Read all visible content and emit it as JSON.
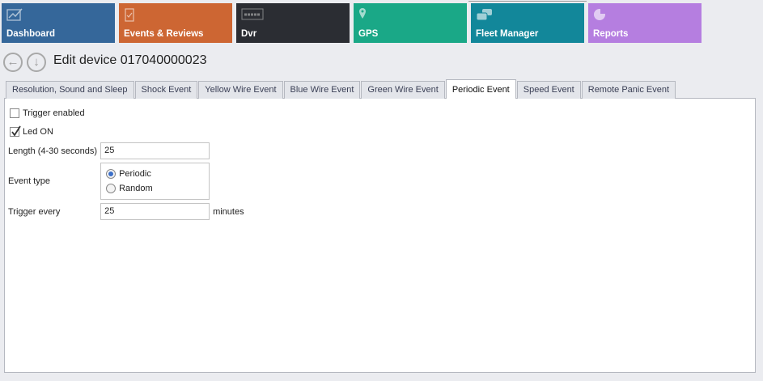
{
  "tiles": [
    {
      "label": "Dashboard",
      "icon": "chart-line-icon",
      "color": "#35679a"
    },
    {
      "label": "Events & Reviews",
      "icon": "clipboard-check-icon",
      "color": "#cd6633"
    },
    {
      "label": "Dvr",
      "icon": "merge-logo-icon",
      "color": "#2b2d33"
    },
    {
      "label": "GPS",
      "icon": "map-pin-icon",
      "color": "#1aa887"
    },
    {
      "label": "Fleet Manager",
      "icon": "cars-icon",
      "color": "#12879a"
    },
    {
      "label": "Reports",
      "icon": "pie-chart-icon",
      "color": "#b57ee0"
    }
  ],
  "header": {
    "title": "Edit device 017040000023"
  },
  "tabs": [
    "Resolution, Sound and Sleep",
    "Shock Event",
    "Yellow Wire Event",
    "Blue Wire Event",
    "Green Wire Event",
    "Periodic Event",
    "Speed Event",
    "Remote Panic Event"
  ],
  "active_tab": "Periodic Event",
  "form": {
    "trigger_enabled": {
      "label": "Trigger enabled",
      "checked": false
    },
    "led_on": {
      "label": "Led ON",
      "checked": true
    },
    "length": {
      "label": "Length (4-30 seconds)",
      "value": "25"
    },
    "event_type": {
      "label": "Event type",
      "options": [
        "Periodic",
        "Random"
      ],
      "selected": "Periodic"
    },
    "trigger_every": {
      "label": "Trigger every",
      "value": "25",
      "unit": "minutes"
    }
  }
}
